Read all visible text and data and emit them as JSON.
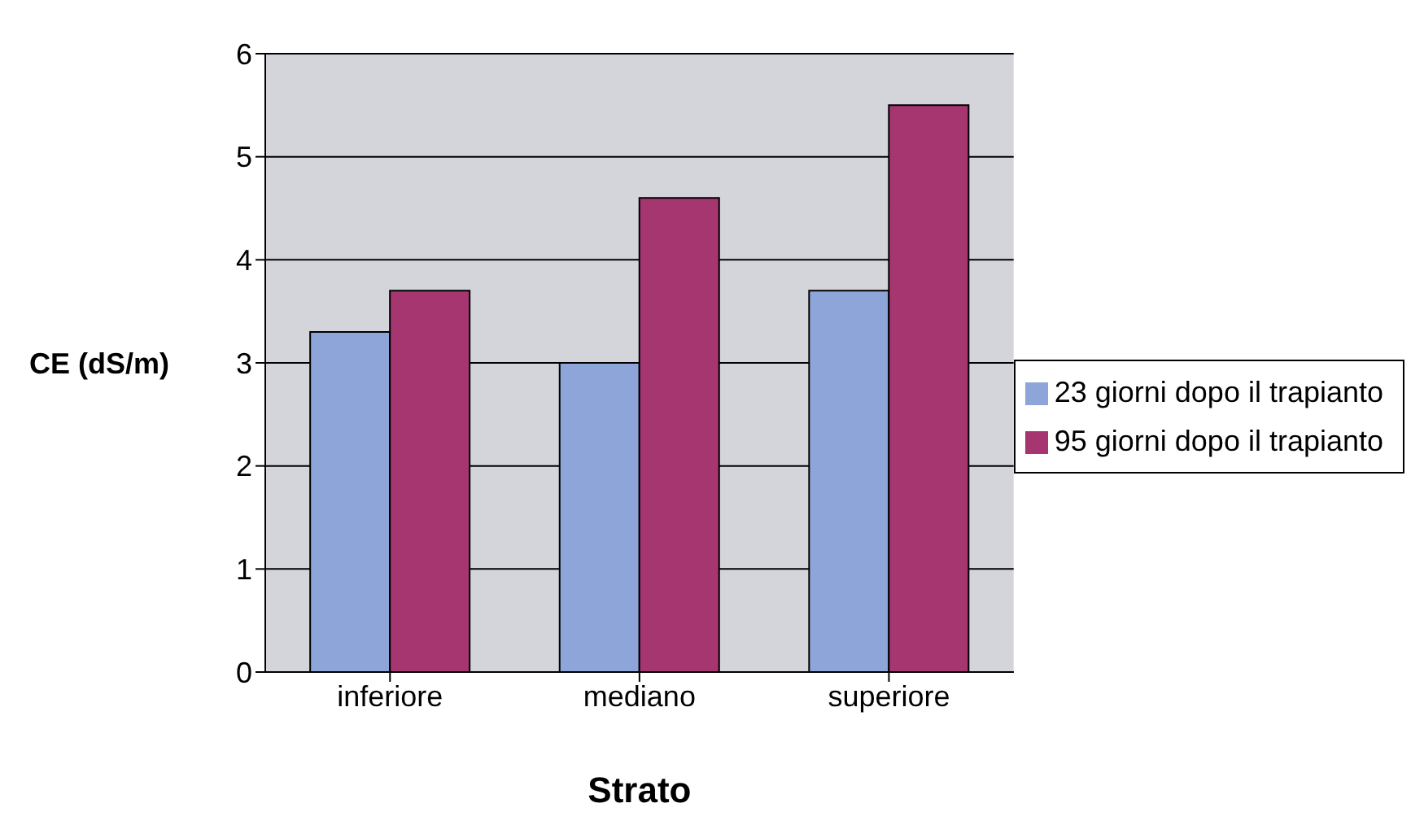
{
  "chart_data": {
    "type": "bar",
    "xlabel": "Strato",
    "ylabel": "CE (dS/m)",
    "categories": [
      "inferiore",
      "mediano",
      "superiore"
    ],
    "series": [
      {
        "name": "23 giorni dopo il trapianto",
        "color": "#8ea5d9",
        "values": [
          3.3,
          3.0,
          3.7
        ]
      },
      {
        "name": "95 giorni dopo il trapianto",
        "color": "#a53670",
        "values": [
          3.7,
          4.6,
          5.5
        ]
      }
    ],
    "ylim": [
      0,
      6
    ],
    "yticks": [
      0,
      1,
      2,
      3,
      4,
      5,
      6
    ],
    "grid": "y",
    "legend": "right"
  }
}
